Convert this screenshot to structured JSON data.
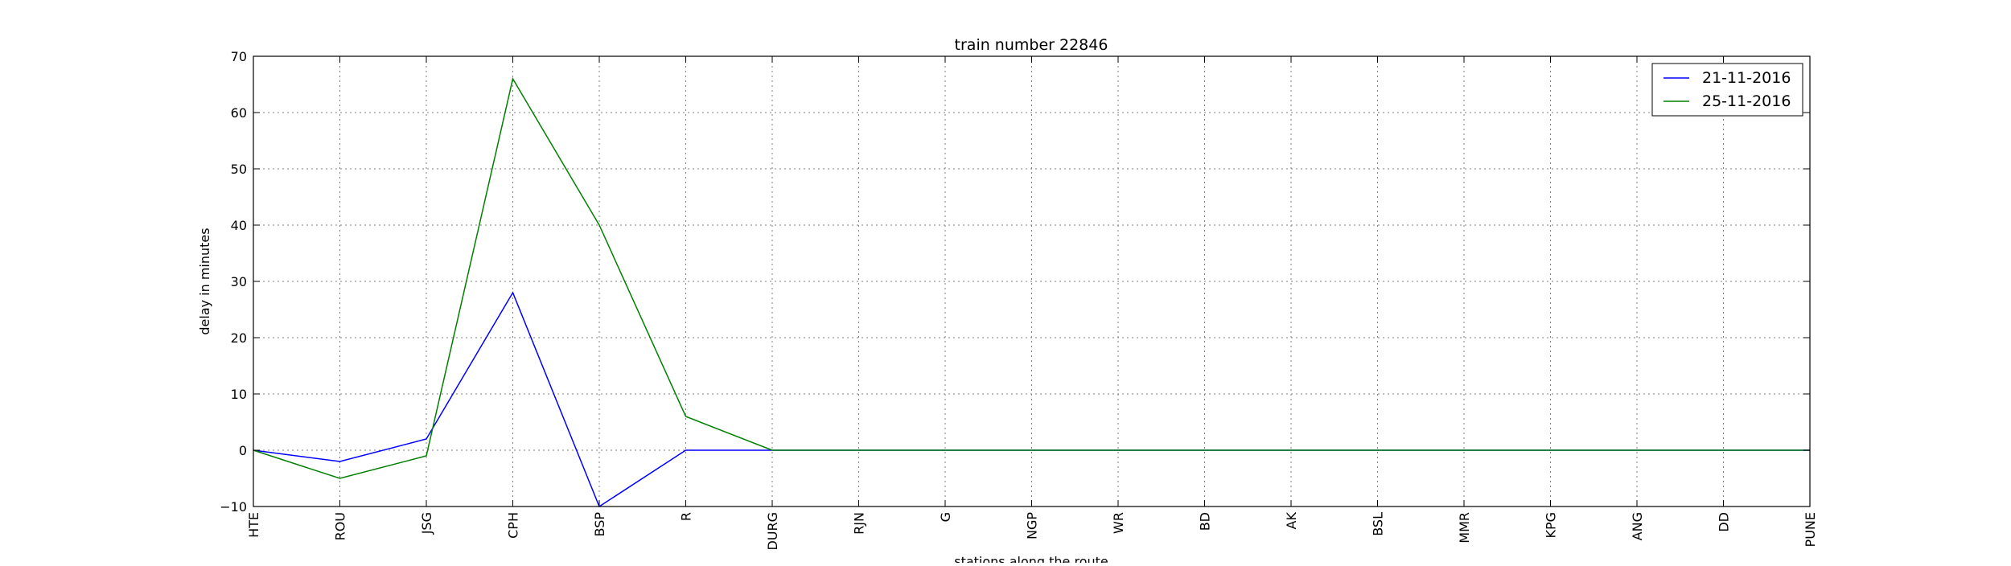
{
  "chart_data": {
    "type": "line",
    "title": "train number 22846",
    "xlabel": "stations along the route",
    "ylabel": "delay in minutes",
    "categories": [
      "HTE",
      "ROU",
      "JSG",
      "CPH",
      "BSP",
      "R",
      "DURG",
      "RJN",
      "G",
      "NGP",
      "WR",
      "BD",
      "AK",
      "BSL",
      "MMR",
      "KPG",
      "ANG",
      "DD",
      "PUNE"
    ],
    "yticks": [
      "70",
      "60",
      "50",
      "40",
      "30",
      "20",
      "10",
      "0",
      "−10"
    ],
    "ylim": [
      -10,
      70
    ],
    "grid": true,
    "legend_position": "top-right",
    "series": [
      {
        "name": "21-11-2016",
        "color": "#0000ff",
        "values": [
          0,
          -2,
          2,
          28,
          -10,
          0,
          0,
          0,
          0,
          0,
          0,
          0,
          0,
          0,
          0,
          0,
          0,
          0,
          0
        ]
      },
      {
        "name": "25-11-2016",
        "color": "#008000",
        "values": [
          0,
          -5,
          -1,
          66,
          40,
          6,
          0,
          0,
          0,
          0,
          0,
          0,
          0,
          0,
          0,
          0,
          0,
          0,
          0
        ]
      }
    ]
  }
}
